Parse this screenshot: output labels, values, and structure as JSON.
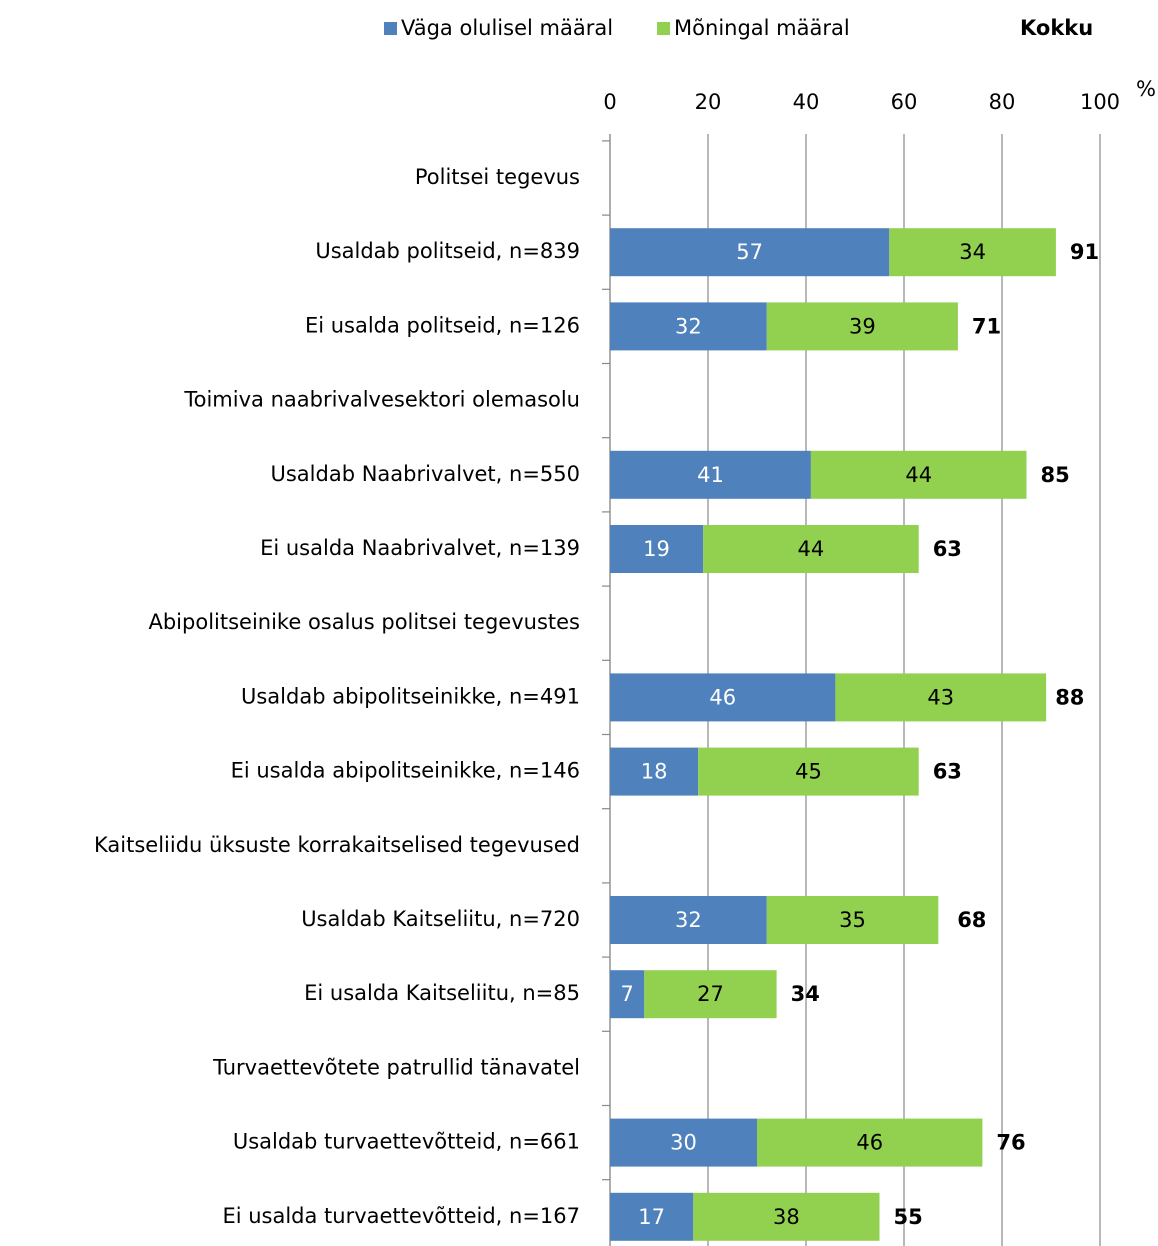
{
  "chart_data": {
    "type": "stacked_barh",
    "xlabel": "%",
    "categories": [
      "Politsei tegevus",
      "Usaldab politseid, n=839",
      "Ei usalda politseid, n=126",
      "Toimiva naabrivalvesektori olemasolu",
      "Usaldab Naabrivalvet, n=550",
      "Ei usalda Naabrivalvet, n=139",
      "Abipolitseinike osalus politsei tegevustes",
      "Usaldab abipolitseinikke, n=491",
      "Ei usalda abipolitseinikke, n=146",
      "Kaitseliidu üksuste korrakaitselised tegevused",
      "Usaldab Kaitseliitu, n=720",
      "Ei usalda Kaitseliitu, n=85",
      "Turvaettevõtete patrullid tänavatel",
      "Usaldab turvaettevõtteid, n=661",
      "Ei usalda turvaettevõtteid, n=167"
    ],
    "series": [
      {
        "name": "Väga olulisel määral",
        "color": "#4f81bd",
        "label_color": "#ffffff",
        "values": [
          null,
          57,
          32,
          null,
          41,
          19,
          null,
          46,
          18,
          null,
          32,
          7,
          null,
          30,
          17
        ]
      },
      {
        "name": "Mõningal määral",
        "color": "#92d050",
        "label_color": "#000000",
        "values": [
          null,
          34,
          39,
          null,
          44,
          44,
          null,
          43,
          45,
          null,
          35,
          27,
          null,
          46,
          38
        ]
      }
    ],
    "totals": {
      "name": "Kokku",
      "values": [
        null,
        91,
        71,
        null,
        85,
        63,
        null,
        88,
        63,
        null,
        68,
        34,
        null,
        76,
        55
      ]
    },
    "xlim": [
      0,
      100
    ],
    "xticks": [
      0,
      20,
      40,
      60,
      80,
      100
    ],
    "grid": true,
    "legend": "top"
  }
}
